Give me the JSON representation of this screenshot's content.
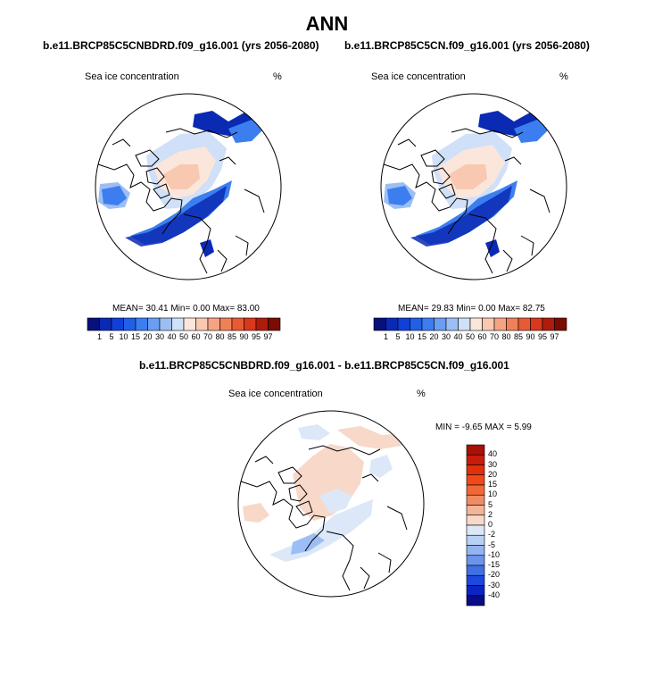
{
  "main_title": "ANN",
  "panels": [
    {
      "case_title": "b.e11.BRCP85C5CNBDRD.f09_g16.001 (yrs 2056-2080)",
      "variable": "Sea ice concentration",
      "units": "%",
      "stats": {
        "mean": "30.41",
        "min": "0.00",
        "max": "83.00",
        "mean_label": "MEAN=",
        "min_label": "Min=",
        "max_label": "Max="
      }
    },
    {
      "case_title": "b.e11.BRCP85C5CN.f09_g16.001 (yrs 2056-2080)",
      "variable": "Sea ice concentration",
      "units": "%",
      "stats": {
        "mean": "29.83",
        "min": "0.00",
        "max": "82.75",
        "mean_label": "MEAN=",
        "min_label": "Min=",
        "max_label": "Max="
      }
    }
  ],
  "abs_colorbar": {
    "labels": [
      "1",
      "5",
      "10",
      "15",
      "20",
      "30",
      "40",
      "50",
      "60",
      "70",
      "80",
      "85",
      "90",
      "95",
      "97"
    ],
    "colors": [
      "#08107a",
      "#0a2ab4",
      "#1040d8",
      "#2060e8",
      "#3c7ef0",
      "#6a9ef2",
      "#9cbef4",
      "#cfe0f8",
      "#fbe6dc",
      "#f8c8b0",
      "#f4a484",
      "#f08058",
      "#e85a34",
      "#d8381c",
      "#b01c0c",
      "#7a0c04"
    ]
  },
  "diff_panel": {
    "case_title": "b.e11.BRCP85C5CNBDRD.f09_g16.001 - b.e11.BRCP85C5CN.f09_g16.001",
    "variable": "Sea ice concentration",
    "units": "%",
    "stats": {
      "min_label": "MIN =",
      "min": "-9.65",
      "max_label": "MAX =",
      "max": "5.99"
    }
  },
  "diff_colorbar": {
    "labels": [
      "40",
      "30",
      "20",
      "15",
      "10",
      "5",
      "2",
      "0",
      "-2",
      "-5",
      "-10",
      "-15",
      "-20",
      "-30",
      "-40"
    ],
    "colors": [
      "#a81008",
      "#c81c0c",
      "#e0300c",
      "#f04818",
      "#f06838",
      "#f08c64",
      "#f4b498",
      "#f8d8c8",
      "#dce8f8",
      "#b8d0f4",
      "#94b4f0",
      "#6c94ec",
      "#4070e4",
      "#1c48dc",
      "#0c24c0",
      "#080c88"
    ]
  },
  "map_colors": {
    "ocean": "#ffffff",
    "coast": "#000000",
    "ice_blue_dark": "#0a2ab4",
    "ice_blue": "#3c7ef0",
    "ice_blue_light": "#9cbef4",
    "ice_pale": "#cfe0f8",
    "ice_peach": "#fbe6dc",
    "ice_salmon": "#f8c8b0",
    "diff_pink": "#f8d8c8",
    "diff_blue": "#dce8f8"
  }
}
